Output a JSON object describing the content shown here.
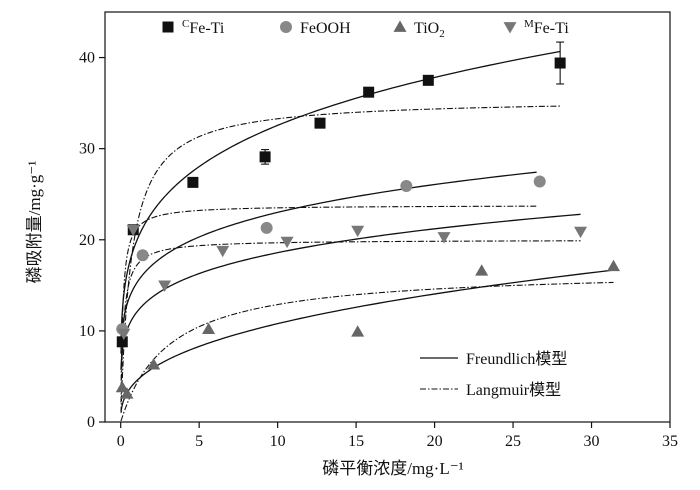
{
  "chart_data": {
    "type": "scatter",
    "xlabel": "磷平衡浓度/mg·L⁻¹",
    "ylabel": "磷吸附量/mg·g⁻¹",
    "xlim": [
      -1,
      35
    ],
    "ylim": [
      0,
      45
    ],
    "xticks": [
      "0",
      "5",
      "10",
      "15",
      "20",
      "25",
      "30",
      "35"
    ],
    "yticks": [
      "0",
      "10",
      "20",
      "30",
      "40"
    ],
    "legend_position": "top",
    "series": [
      {
        "name": "CFe-Ti",
        "sup": "C",
        "base": "Fe-Ti",
        "marker": "square",
        "color": "#111111",
        "points": [
          {
            "x": 0.1,
            "y": 8.8
          },
          {
            "x": 0.8,
            "y": 21.1
          },
          {
            "x": 4.6,
            "y": 26.3
          },
          {
            "x": 9.2,
            "y": 29.1,
            "err": 0.8
          },
          {
            "x": 12.7,
            "y": 32.8
          },
          {
            "x": 15.8,
            "y": 36.2
          },
          {
            "x": 19.6,
            "y": 37.5
          },
          {
            "x": 28.0,
            "y": 39.4,
            "err": 2.3
          }
        ]
      },
      {
        "name": "FeOOH",
        "marker": "circle",
        "color": "#888888",
        "points": [
          {
            "x": 0.1,
            "y": 10.2
          },
          {
            "x": 1.4,
            "y": 18.3
          },
          {
            "x": 9.3,
            "y": 21.3
          },
          {
            "x": 18.2,
            "y": 25.9
          },
          {
            "x": 26.7,
            "y": 26.4
          }
        ]
      },
      {
        "name": "TiO2",
        "base": "TiO",
        "sub": "2",
        "marker": "triangle-up",
        "color": "#666666",
        "points": [
          {
            "x": 0.1,
            "y": 3.8
          },
          {
            "x": 0.4,
            "y": 3.1
          },
          {
            "x": 2.1,
            "y": 6.3
          },
          {
            "x": 5.6,
            "y": 10.2
          },
          {
            "x": 15.1,
            "y": 9.9
          },
          {
            "x": 23.0,
            "y": 16.6
          },
          {
            "x": 31.4,
            "y": 17.1
          }
        ]
      },
      {
        "name": "MFe-Ti",
        "sup": "M",
        "base": "Fe-Ti",
        "marker": "triangle-down",
        "color": "#777777",
        "points": [
          {
            "x": 0.2,
            "y": 9.7
          },
          {
            "x": 0.8,
            "y": 21.1
          },
          {
            "x": 2.8,
            "y": 15.0
          },
          {
            "x": 6.5,
            "y": 18.8
          },
          {
            "x": 10.6,
            "y": 19.8
          },
          {
            "x": 15.1,
            "y": 21.0
          },
          {
            "x": 20.6,
            "y": 20.3
          },
          {
            "x": 29.3,
            "y": 20.9
          }
        ]
      }
    ],
    "fits": {
      "freundlich_label": "Freundlich模型",
      "langmuir_label": "Langmuir模型",
      "freundlich": [
        {
          "series": "CFe-Ti",
          "K": 19.8,
          "n": 0.216,
          "x_end": 28
        },
        {
          "series": "FeOOH",
          "K": 15.2,
          "n": 0.18,
          "x_end": 26.5
        },
        {
          "series": "MFe-Ti",
          "K": 12.0,
          "n": 0.19,
          "x_end": 29.3
        },
        {
          "series": "TiO2",
          "K": 4.5,
          "n": 0.38,
          "x_end": 31.4
        }
      ],
      "langmuir": [
        {
          "series": "CFe-Ti",
          "qmax": 35.5,
          "KL": 1.5,
          "x_end": 28
        },
        {
          "series": "FeOOH",
          "qmax": 23.8,
          "KL": 8.0,
          "x_end": 26.5
        },
        {
          "series": "MFe-Ti",
          "qmax": 20.0,
          "KL": 6.0,
          "x_end": 29.3
        },
        {
          "series": "TiO2",
          "qmax": 16.8,
          "KL": 0.33,
          "x_end": 31.4
        }
      ]
    }
  }
}
